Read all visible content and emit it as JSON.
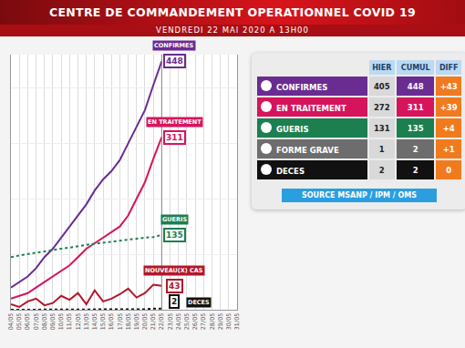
{
  "header": {
    "title": "CENTRE DE COMMANDEMENT OPERATIONNEL COVID 19",
    "subtitle": "VENDREDI 22 MAI 2020 A 13H00"
  },
  "chart_data": {
    "type": "line",
    "categories": [
      "04/05",
      "05/05",
      "06/05",
      "07/05",
      "08/05",
      "09/05",
      "10/05",
      "11/05",
      "12/05",
      "13/05",
      "14/05",
      "15/05",
      "16/05",
      "17/05",
      "18/05",
      "19/05",
      "20/05",
      "21/05",
      "22/05",
      "23/05",
      "24/05",
      "25/05",
      "26/05",
      "27/05",
      "28/05",
      "29/05",
      "30/05",
      "31/05"
    ],
    "series": [
      {
        "name": "CONFIRMES",
        "color": "#6a2c91",
        "line_style": "solid",
        "values": [
          40,
          50,
          60,
          75,
          95,
          110,
          130,
          150,
          170,
          190,
          215,
          235,
          250,
          270,
          300,
          330,
          360,
          405,
          448,
          null,
          null,
          null,
          null,
          null,
          null,
          null,
          null,
          null
        ]
      },
      {
        "name": "EN TRAITEMENT",
        "color": "#d6145c",
        "line_style": "solid",
        "values": [
          20,
          25,
          30,
          40,
          50,
          60,
          70,
          80,
          95,
          110,
          120,
          130,
          140,
          150,
          170,
          200,
          230,
          272,
          311,
          null,
          null,
          null,
          null,
          null,
          null,
          null,
          null,
          null
        ]
      },
      {
        "name": "GUERIS",
        "color": "#1b7f4f",
        "line_style": "dot",
        "values": [
          95,
          98,
          100,
          103,
          105,
          108,
          110,
          112,
          115,
          117,
          119,
          121,
          123,
          125,
          127,
          129,
          130,
          131,
          135,
          null,
          null,
          null,
          null,
          null,
          null,
          null,
          null,
          null
        ]
      },
      {
        "name": "NOUVEAU(X) CAS",
        "color": "#b3162a",
        "line_style": "solid",
        "values": [
          10,
          5,
          15,
          20,
          8,
          12,
          25,
          18,
          30,
          10,
          35,
          15,
          20,
          28,
          38,
          22,
          30,
          45,
          43,
          null,
          null,
          null,
          null,
          null,
          null,
          null,
          null,
          null
        ]
      },
      {
        "name": "DECES",
        "color": "#111111",
        "line_style": "dot",
        "values": [
          0,
          0,
          0,
          0,
          0,
          0,
          0,
          0,
          0,
          0,
          0,
          1,
          1,
          1,
          1,
          1,
          1,
          2,
          2,
          null,
          null,
          null,
          null,
          null,
          null,
          null,
          null,
          null
        ]
      }
    ],
    "ylim": [
      0,
      460
    ],
    "yticks": [
      0,
      100,
      200,
      300,
      400
    ],
    "grid": true,
    "tick_labels": "x",
    "data_labels": true
  },
  "table": {
    "columns": [
      "HIER",
      "CUMUL",
      "DIFF"
    ],
    "rows": [
      {
        "label": "CONFIRMES",
        "color": "#6a2c91",
        "values": [
          405,
          448,
          "+43"
        ]
      },
      {
        "label": "EN TRAITEMENT",
        "color": "#d6145c",
        "values": [
          272,
          311,
          "+39"
        ]
      },
      {
        "label": "GUERIS",
        "color": "#1b7f4f",
        "values": [
          131,
          135,
          "+4"
        ]
      },
      {
        "label": "FORME GRAVE",
        "color": "#6d6d6d",
        "values": [
          1,
          2,
          "+1"
        ]
      },
      {
        "label": "DECES",
        "color": "#111111",
        "values": [
          2,
          2,
          "0"
        ]
      }
    ]
  },
  "source": "SOURCE MSANP / IPM / OMS"
}
